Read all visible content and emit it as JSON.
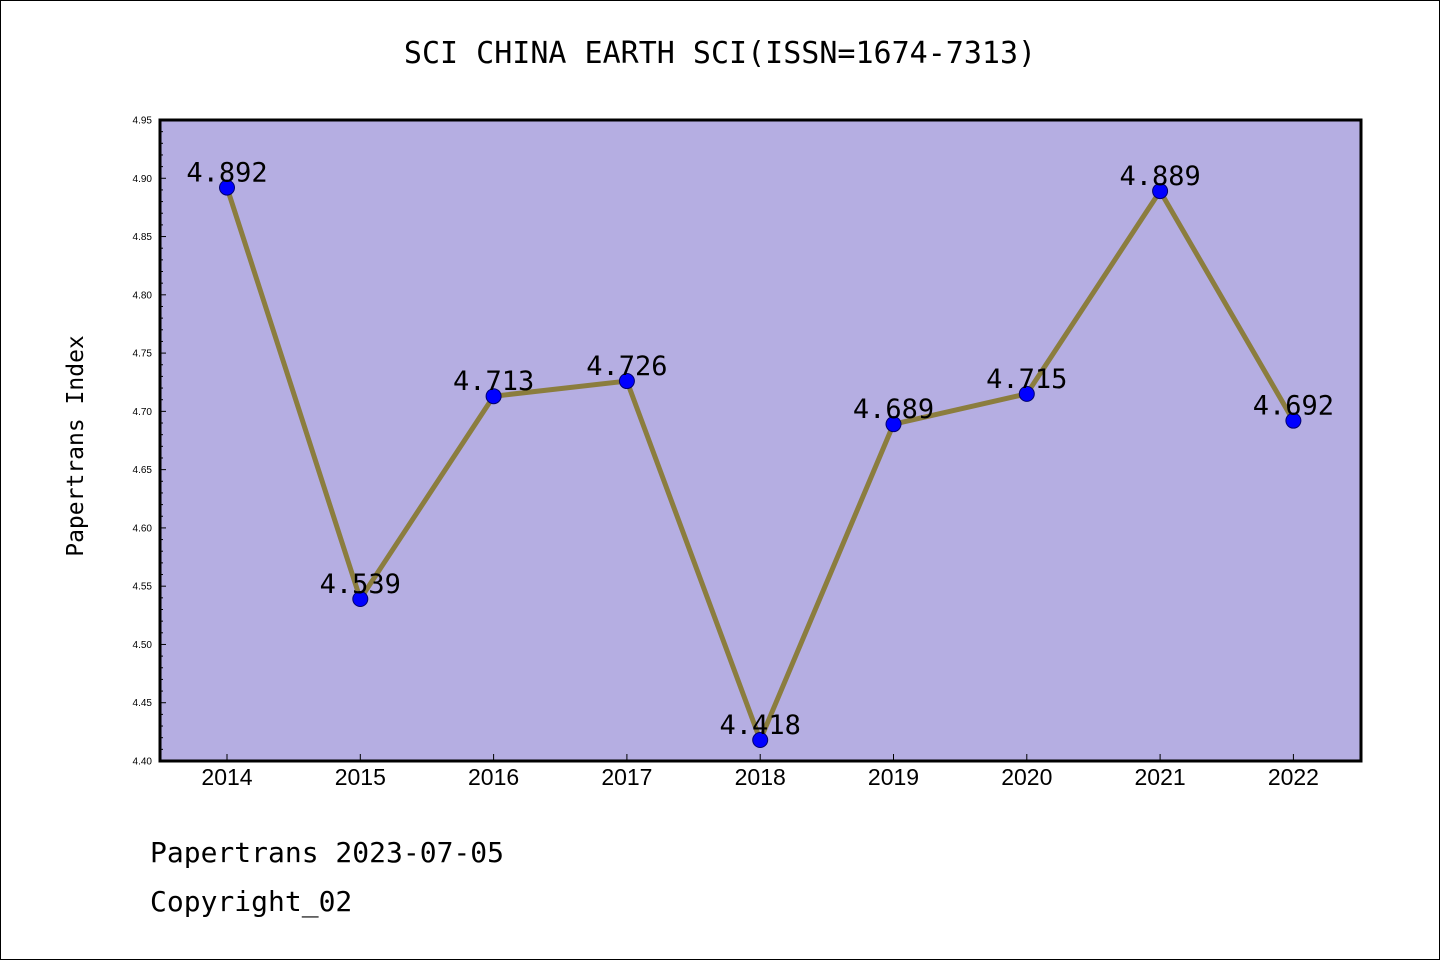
{
  "title": "SCI CHINA EARTH SCI(ISSN=1674-7313)",
  "footer": {
    "line1": "Papertrans 2023-07-05",
    "line2": "Copyright_02"
  },
  "colors": {
    "plot_bg": "#b5aee2",
    "line": "#8b7d3e",
    "marker": "#0000ff"
  },
  "chart_data": {
    "type": "line",
    "ylabel": "Papertrans Index",
    "categories": [
      "2014",
      "2015",
      "2016",
      "2017",
      "2018",
      "2019",
      "2020",
      "2021",
      "2022"
    ],
    "values": [
      4.892,
      4.539,
      4.713,
      4.726,
      4.418,
      4.689,
      4.715,
      4.889,
      4.692
    ],
    "labels": [
      "4.892",
      "4.539",
      "4.713",
      "4.726",
      "4.418",
      "4.689",
      "4.715",
      "4.889",
      "4.692"
    ],
    "ylim": [
      4.4,
      4.95
    ],
    "yticks": [
      "4.40",
      "4.45",
      "4.50",
      "4.55",
      "4.60",
      "4.65",
      "4.70",
      "4.75",
      "4.80",
      "4.85",
      "4.90",
      "4.95"
    ],
    "grid": false
  }
}
